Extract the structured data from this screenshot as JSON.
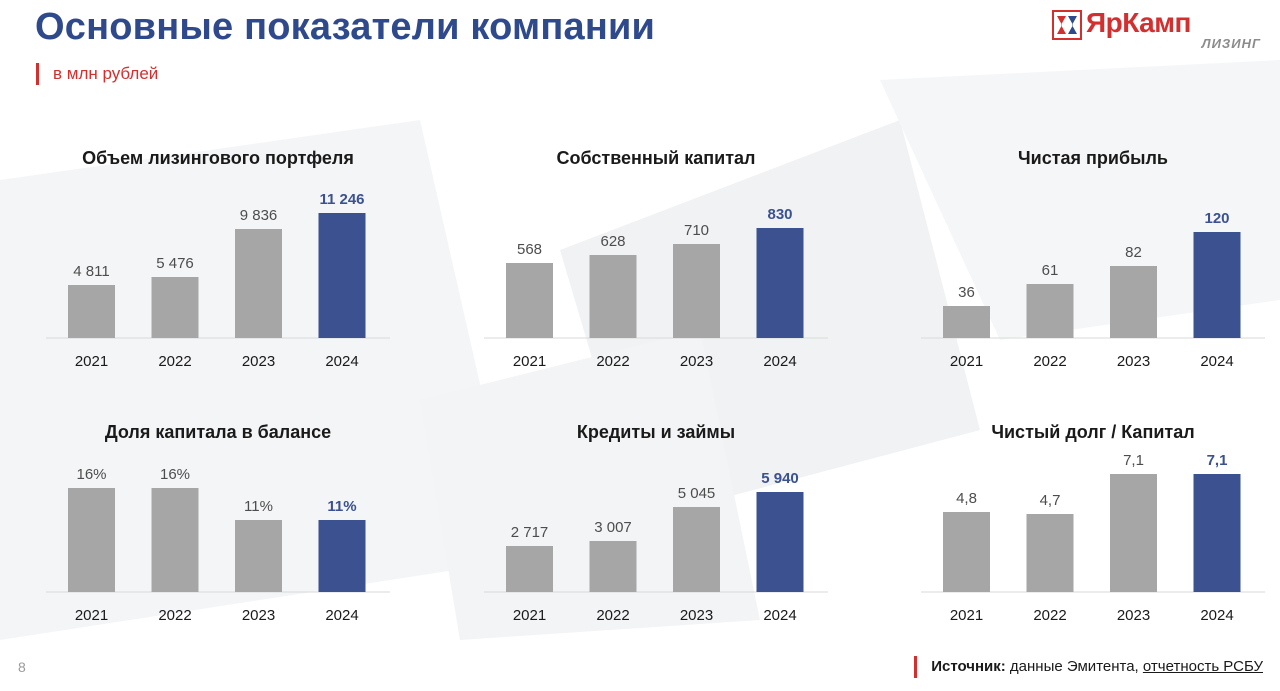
{
  "header": {
    "title": "Основные показатели компании",
    "subtitle": "в млн рублей"
  },
  "logo": {
    "name": "ЯрКамп",
    "tagline": "ЛИЗИНГ"
  },
  "colors": {
    "gray_bar": "#a6a6a6",
    "highlight_bar": "#3b5190",
    "title": "#2e4a8c",
    "accent_red": "#d32f2f"
  },
  "chart_data": [
    {
      "type": "bar",
      "title": "Объем лизингового портфеля",
      "categories": [
        "2021",
        "2022",
        "2023",
        "2024"
      ],
      "values": [
        4811,
        5476,
        9836,
        11246
      ],
      "labels": [
        "4 811",
        "5 476",
        "9 836",
        "11 246"
      ],
      "highlight_index": 3,
      "ylim": [
        0,
        11246
      ]
    },
    {
      "type": "bar",
      "title": "Собственный капитал",
      "categories": [
        "2021",
        "2022",
        "2023",
        "2024"
      ],
      "values": [
        568,
        628,
        710,
        830
      ],
      "labels": [
        "568",
        "628",
        "710",
        "830"
      ],
      "highlight_index": 3,
      "ylim": [
        0,
        830
      ]
    },
    {
      "type": "bar",
      "title": "Чистая прибыль",
      "categories": [
        "2021",
        "2022",
        "2023",
        "2024"
      ],
      "values": [
        36,
        61,
        82,
        120
      ],
      "labels": [
        "36",
        "61",
        "82",
        "120"
      ],
      "highlight_index": 3,
      "ylim": [
        0,
        120
      ]
    },
    {
      "type": "bar",
      "title": "Доля капитала в балансе",
      "categories": [
        "2021",
        "2022",
        "2023",
        "2024"
      ],
      "values": [
        16,
        16,
        11,
        11
      ],
      "labels": [
        "16%",
        "16%",
        "11%",
        "11%"
      ],
      "highlight_index": 3,
      "ylim": [
        0,
        16
      ]
    },
    {
      "type": "bar",
      "title": "Кредиты и займы",
      "categories": [
        "2021",
        "2022",
        "2023",
        "2024"
      ],
      "values": [
        2717,
        3007,
        5045,
        5940
      ],
      "labels": [
        "2 717",
        "3 007",
        "5 045",
        "5 940"
      ],
      "highlight_index": 3,
      "ylim": [
        0,
        5940
      ]
    },
    {
      "type": "bar",
      "title": "Чистый долг / Капитал",
      "categories": [
        "2021",
        "2022",
        "2023",
        "2024"
      ],
      "values": [
        4.8,
        4.7,
        7.1,
        7.1
      ],
      "labels": [
        "4,8",
        "4,7",
        "7,1",
        "7,1"
      ],
      "highlight_index": 3,
      "ylim": [
        0,
        7.1
      ]
    }
  ],
  "footer": {
    "page_number": "8",
    "source_label": "Источник:",
    "source_text": " данные Эмитента, ",
    "source_link": "отчетность РСБУ"
  }
}
